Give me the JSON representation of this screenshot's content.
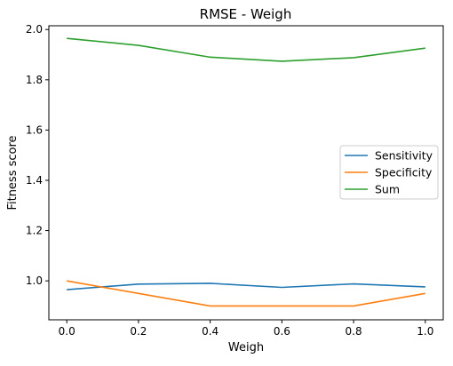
{
  "chart_data": {
    "type": "line",
    "title": "RMSE - Weigh",
    "xlabel": "Weigh",
    "ylabel": "Fitness score",
    "x": [
      0.0,
      0.2,
      0.4,
      0.6,
      0.8,
      1.0
    ],
    "xlim": [
      -0.05,
      1.05
    ],
    "ylim": [
      0.845,
      2.015
    ],
    "xticks": [
      "0.0",
      "0.2",
      "0.4",
      "0.6",
      "0.8",
      "1.0"
    ],
    "xtick_values": [
      0.0,
      0.2,
      0.4,
      0.6,
      0.8,
      1.0
    ],
    "yticks": [
      "1.0",
      "1.2",
      "1.4",
      "1.6",
      "1.8",
      "2.0"
    ],
    "ytick_values": [
      1.0,
      1.2,
      1.4,
      1.6,
      1.8,
      2.0
    ],
    "grid": false,
    "legend_position": "center-right",
    "series": [
      {
        "name": "Sensitivity",
        "color": "#1f77b4",
        "values": [
          0.965,
          0.987,
          0.99,
          0.974,
          0.988,
          0.976
        ]
      },
      {
        "name": "Specificity",
        "color": "#ff7f0e",
        "values": [
          1.0,
          0.95,
          0.9,
          0.9,
          0.9,
          0.95
        ]
      },
      {
        "name": "Sum",
        "color": "#2ca02c",
        "values": [
          1.965,
          1.937,
          1.89,
          1.874,
          1.888,
          1.926
        ]
      }
    ]
  }
}
